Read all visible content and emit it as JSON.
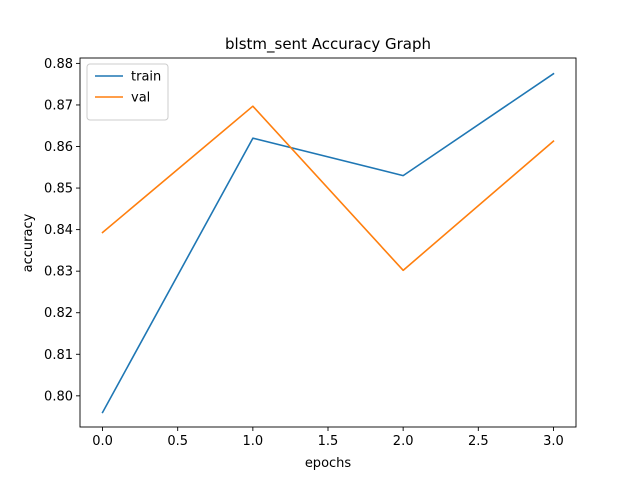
{
  "chart_data": {
    "type": "line",
    "title": "blstm_sent Accuracy Graph",
    "xlabel": "epochs",
    "ylabel": "accuracy",
    "x": [
      0,
      1,
      2,
      3
    ],
    "xlim": [
      -0.15,
      3.15
    ],
    "ylim": [
      0.7925,
      0.8813
    ],
    "xticks": [
      0.0,
      0.5,
      1.0,
      1.5,
      2.0,
      2.5,
      3.0
    ],
    "xtick_labels": [
      "0.0",
      "0.5",
      "1.0",
      "1.5",
      "2.0",
      "2.5",
      "3.0"
    ],
    "yticks": [
      0.8,
      0.81,
      0.82,
      0.83,
      0.84,
      0.85,
      0.86,
      0.87,
      0.88
    ],
    "ytick_labels": [
      "0.80",
      "0.81",
      "0.82",
      "0.83",
      "0.84",
      "0.85",
      "0.86",
      "0.87",
      "0.88"
    ],
    "grid": false,
    "legend_position": "upper-left",
    "series": [
      {
        "name": "train",
        "color": "#1f77b4",
        "values": [
          0.796,
          0.862,
          0.853,
          0.8775
        ]
      },
      {
        "name": "val",
        "color": "#ff7f0e",
        "values": [
          0.8393,
          0.8697,
          0.8302,
          0.8613
        ]
      }
    ]
  }
}
